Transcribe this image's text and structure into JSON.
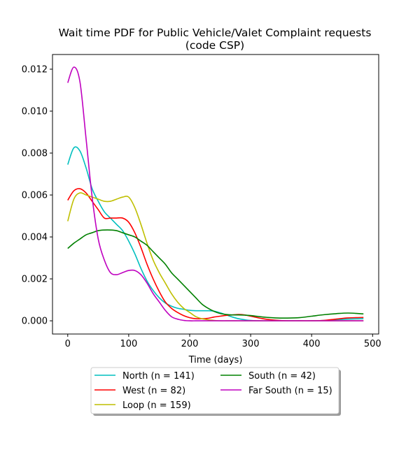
{
  "chart_data": {
    "type": "line",
    "title": "Wait time PDF for Public Vehicle/Valet Complaint  requests",
    "subtitle": "(code CSP)",
    "xlabel": "Time (days)",
    "ylabel": "",
    "xlim": [
      -25,
      510
    ],
    "ylim": [
      -0.00063,
      0.0127
    ],
    "xticks": [
      0,
      100,
      200,
      300,
      400,
      500
    ],
    "xtick_labels": [
      "0",
      "100",
      "200",
      "300",
      "400",
      "500"
    ],
    "yticks": [
      0.0,
      0.002,
      0.004,
      0.006,
      0.008,
      0.01,
      0.012
    ],
    "ytick_labels": [
      "0.000",
      "0.002",
      "0.004",
      "0.006",
      "0.008",
      "0.010",
      "0.012"
    ],
    "grid": false,
    "legend_position": "below chart, two columns",
    "x": [
      0,
      10,
      20,
      30,
      40,
      50,
      60,
      70,
      80,
      90,
      100,
      110,
      120,
      130,
      140,
      150,
      160,
      170,
      180,
      190,
      200,
      210,
      220,
      230,
      240,
      250,
      260,
      270,
      280,
      290,
      300,
      320,
      340,
      360,
      380,
      400,
      420,
      440,
      460,
      485
    ],
    "series": [
      {
        "name": "North (n = 141)",
        "color": "#00bfbf",
        "values": [
          0.00745,
          0.00825,
          0.0081,
          0.0073,
          0.0063,
          0.0057,
          0.0052,
          0.0049,
          0.0046,
          0.0043,
          0.0038,
          0.0032,
          0.0025,
          0.0019,
          0.00145,
          0.0011,
          0.00085,
          0.0007,
          0.0006,
          0.00055,
          0.0005,
          0.00048,
          0.00048,
          0.00048,
          0.00046,
          0.00038,
          0.00028,
          0.00018,
          0.0001,
          5e-05,
          2e-05,
          0.0,
          0.0,
          0.0,
          0.0,
          0.0,
          2e-05,
          5e-05,
          8e-05,
          0.0001
        ]
      },
      {
        "name": "West (n = 82)",
        "color": "#ff0000",
        "values": [
          0.00575,
          0.0062,
          0.0063,
          0.0061,
          0.0057,
          0.0053,
          0.0049,
          0.0049,
          0.0049,
          0.0049,
          0.0047,
          0.0042,
          0.0035,
          0.0027,
          0.002,
          0.0014,
          0.0009,
          0.0006,
          0.0004,
          0.00025,
          0.00015,
          0.0001,
          0.0001,
          0.00012,
          0.00018,
          0.00022,
          0.00026,
          0.00028,
          0.0003,
          0.00028,
          0.00022,
          0.0001,
          3e-05,
          0.0,
          0.0,
          0.0,
          2e-05,
          8e-05,
          0.00014,
          0.00016
        ]
      },
      {
        "name": "Loop (n = 159)",
        "color": "#bfbf00",
        "values": [
          0.00475,
          0.0058,
          0.0061,
          0.006,
          0.0059,
          0.0058,
          0.0057,
          0.0057,
          0.0058,
          0.0059,
          0.0059,
          0.0054,
          0.0046,
          0.0037,
          0.0029,
          0.0023,
          0.0018,
          0.0013,
          0.0009,
          0.0006,
          0.0004,
          0.0002,
          0.0001,
          5e-05,
          2e-05,
          0.0,
          0.0,
          0.0,
          0.0,
          0.0,
          0.0,
          0.0,
          0.0,
          0.0,
          0.0,
          0.0,
          0.0,
          0.0,
          0.0,
          0.0
        ]
      },
      {
        "name": "South (n = 42)",
        "color": "#008000",
        "values": [
          0.00345,
          0.0037,
          0.0039,
          0.0041,
          0.0042,
          0.0043,
          0.00433,
          0.00433,
          0.0043,
          0.0042,
          0.0041,
          0.004,
          0.0038,
          0.0036,
          0.0033,
          0.003,
          0.0027,
          0.0023,
          0.002,
          0.0017,
          0.0014,
          0.0011,
          0.0008,
          0.0006,
          0.00045,
          0.00035,
          0.0003,
          0.00028,
          0.00028,
          0.00027,
          0.00025,
          0.00018,
          0.00014,
          0.00013,
          0.00015,
          0.00022,
          0.00029,
          0.00034,
          0.00037,
          0.00033
        ]
      },
      {
        "name": "Far South (n = 15)",
        "color": "#bf00bf",
        "values": [
          0.01135,
          0.0121,
          0.0114,
          0.0087,
          0.0059,
          0.0039,
          0.0029,
          0.0023,
          0.0022,
          0.0023,
          0.0024,
          0.0024,
          0.0022,
          0.0018,
          0.0013,
          0.0009,
          0.0005,
          0.0002,
          8e-05,
          2e-05,
          0.0,
          0.0,
          0.0,
          0.0,
          0.0,
          0.0,
          0.0,
          0.0,
          0.0,
          0.0,
          0.0,
          0.0,
          0.0,
          0.0,
          0.0,
          0.0,
          0.0,
          0.0,
          0.0,
          0.0
        ]
      }
    ]
  }
}
